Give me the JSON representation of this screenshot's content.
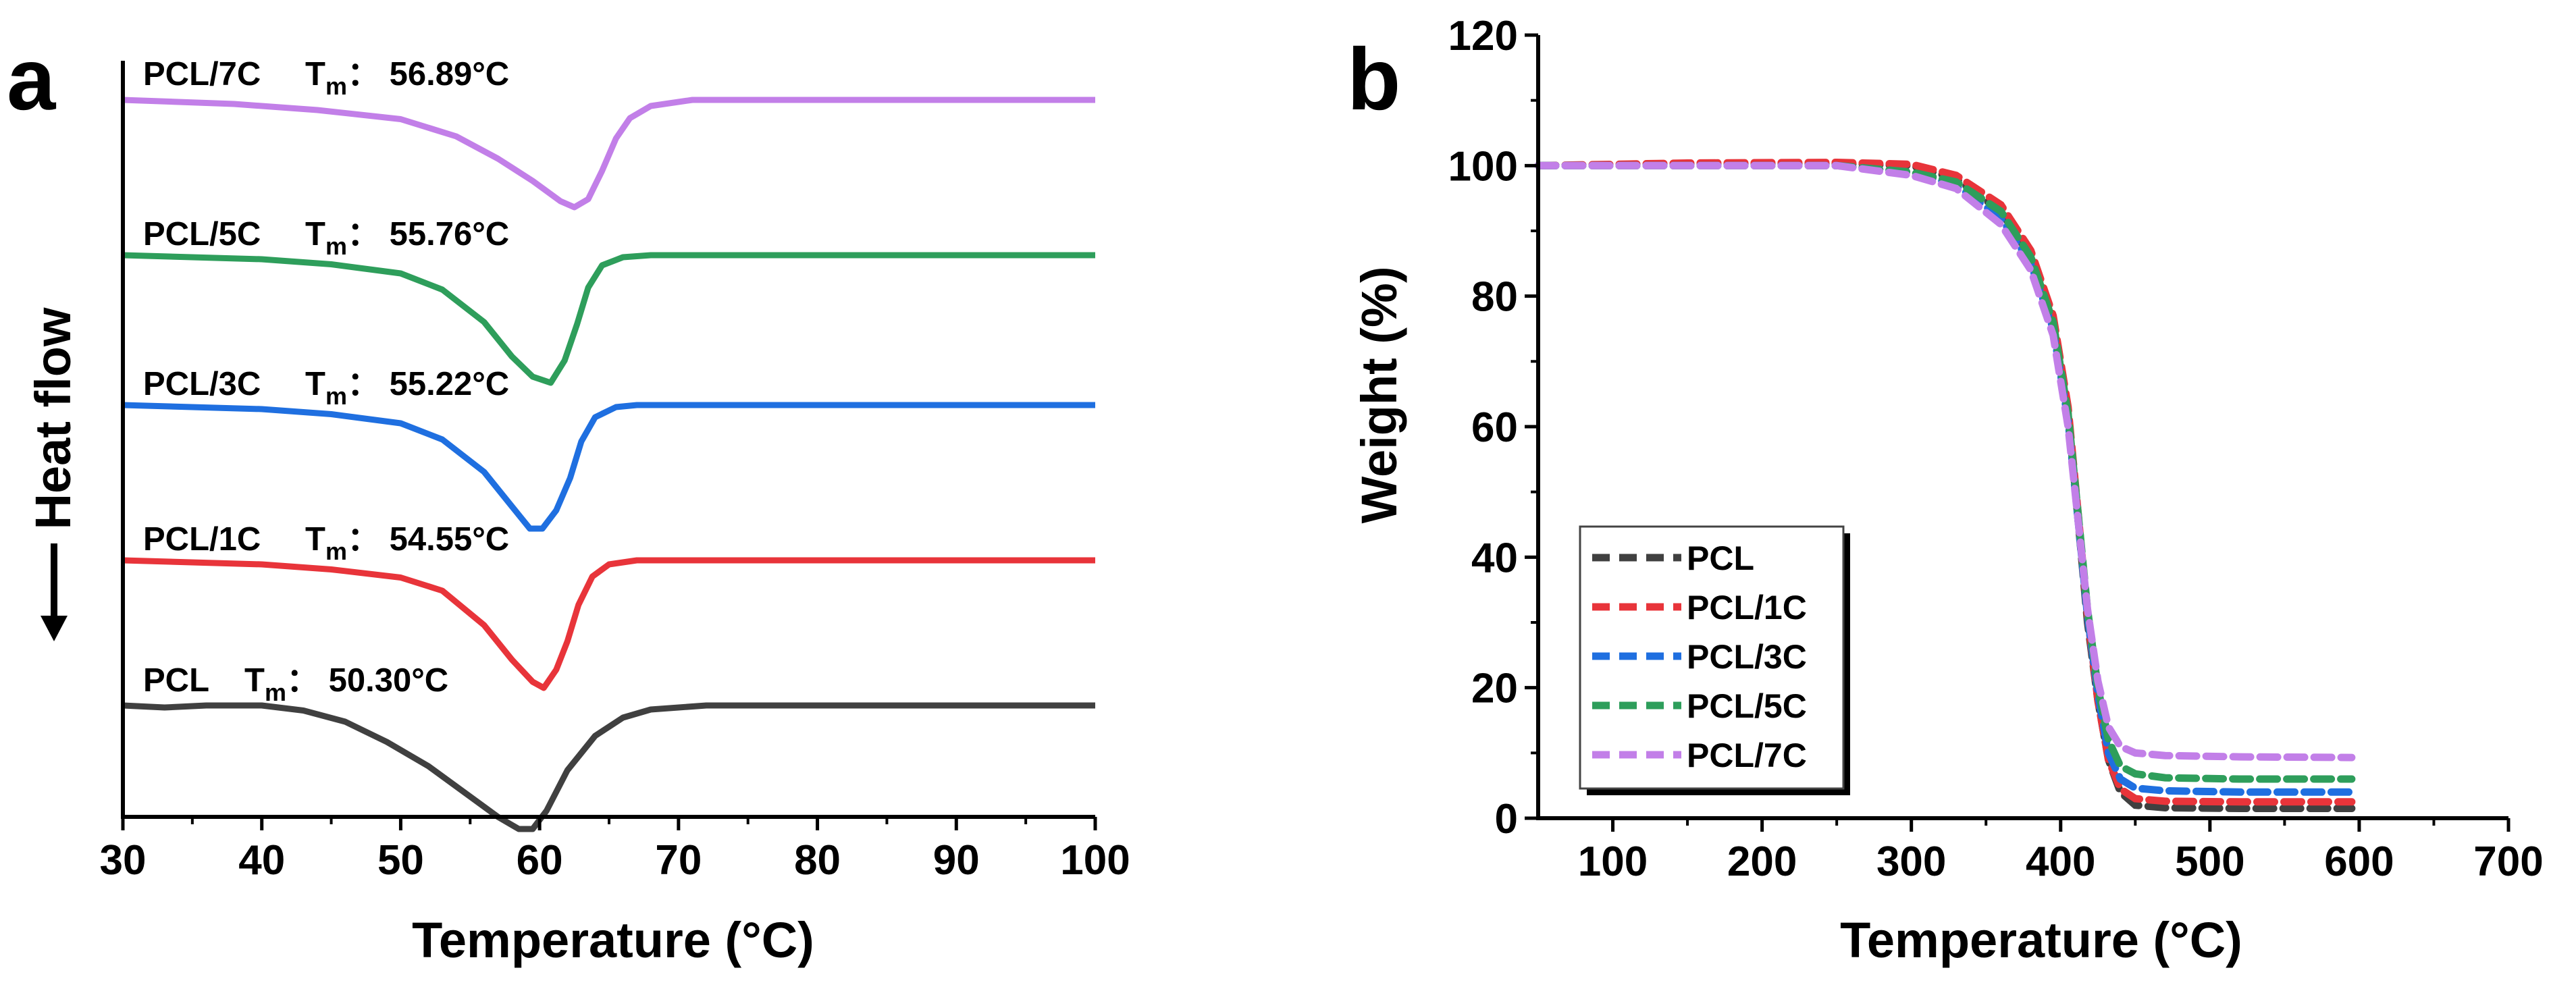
{
  "panels": {
    "a": {
      "letter": "a"
    },
    "b": {
      "letter": "b"
    }
  },
  "chart_data": [
    {
      "type": "line",
      "panel": "a",
      "xlabel": "Temperature (°C)",
      "ylabel": "Heat flow",
      "xlim": [
        30,
        100
      ],
      "xticks": [
        30,
        40,
        50,
        60,
        70,
        80,
        90,
        100
      ],
      "y_ticks_shown": false,
      "arrow": "down",
      "series": [
        {
          "name": "PCL",
          "label": "PCL",
          "tm_symbol": "T",
          "tm_sub": "m",
          "tm_value": "50.30°C",
          "color": "#404040",
          "points": [
            [
              30,
              0
            ],
            [
              33,
              -0.1
            ],
            [
              36,
              0
            ],
            [
              40,
              0
            ],
            [
              43,
              -0.25
            ],
            [
              46,
              -0.8
            ],
            [
              49,
              -1.8
            ],
            [
              52,
              -3.0
            ],
            [
              55,
              -4.5
            ],
            [
              57,
              -5.5
            ],
            [
              58.5,
              -6.1
            ],
            [
              59.5,
              -6.1
            ],
            [
              60.5,
              -5.2
            ],
            [
              62,
              -3.2
            ],
            [
              64,
              -1.5
            ],
            [
              66,
              -0.6
            ],
            [
              68,
              -0.2
            ],
            [
              72,
              0
            ],
            [
              80,
              0
            ],
            [
              90,
              0
            ],
            [
              100,
              0
            ]
          ]
        },
        {
          "name": "PCL/1C",
          "label": "PCL/1C",
          "tm_symbol": "T",
          "tm_sub": "m",
          "tm_value": "54.55°C",
          "color": "#E8343A",
          "points": [
            [
              30,
              0
            ],
            [
              40,
              -0.2
            ],
            [
              45,
              -0.45
            ],
            [
              50,
              -0.85
            ],
            [
              53,
              -1.5
            ],
            [
              56,
              -3.2
            ],
            [
              58,
              -4.9
            ],
            [
              59.5,
              -6.0
            ],
            [
              60.3,
              -6.3
            ],
            [
              61.2,
              -5.4
            ],
            [
              62,
              -4.0
            ],
            [
              62.8,
              -2.2
            ],
            [
              63.8,
              -0.8
            ],
            [
              65,
              -0.2
            ],
            [
              67,
              0
            ],
            [
              80,
              0
            ],
            [
              100,
              0
            ]
          ]
        },
        {
          "name": "PCL/3C",
          "label": "PCL/3C",
          "tm_symbol": "T",
          "tm_sub": "m",
          "tm_value": "55.22°C",
          "color": "#1F6FE0",
          "points": [
            [
              30,
              0
            ],
            [
              40,
              -0.2
            ],
            [
              45,
              -0.45
            ],
            [
              50,
              -0.9
            ],
            [
              53,
              -1.7
            ],
            [
              56,
              -3.3
            ],
            [
              58,
              -5.0
            ],
            [
              59.3,
              -6.1
            ],
            [
              60.2,
              -6.1
            ],
            [
              61.2,
              -5.2
            ],
            [
              62.2,
              -3.6
            ],
            [
              63,
              -1.8
            ],
            [
              64,
              -0.6
            ],
            [
              65.5,
              -0.1
            ],
            [
              67,
              0
            ],
            [
              80,
              0
            ],
            [
              100,
              0
            ]
          ]
        },
        {
          "name": "PCL/5C",
          "label": "PCL/5C",
          "tm_symbol": "T",
          "tm_sub": "m",
          "tm_value": "55.76°C",
          "color": "#2E9E5B",
          "points": [
            [
              30,
              0
            ],
            [
              40,
              -0.2
            ],
            [
              45,
              -0.45
            ],
            [
              50,
              -0.9
            ],
            [
              53,
              -1.7
            ],
            [
              56,
              -3.3
            ],
            [
              58,
              -5.0
            ],
            [
              59.5,
              -6.0
            ],
            [
              60.8,
              -6.3
            ],
            [
              61.8,
              -5.2
            ],
            [
              62.7,
              -3.4
            ],
            [
              63.5,
              -1.6
            ],
            [
              64.5,
              -0.5
            ],
            [
              66,
              -0.1
            ],
            [
              68,
              0
            ],
            [
              80,
              0
            ],
            [
              100,
              0
            ]
          ]
        },
        {
          "name": "PCL/7C",
          "label": "PCL/7C",
          "tm_symbol": "T",
          "tm_sub": "m",
          "tm_value": "56.89°C",
          "color": "#C27FE8",
          "points": [
            [
              30,
              0
            ],
            [
              38,
              -0.2
            ],
            [
              44,
              -0.5
            ],
            [
              50,
              -0.95
            ],
            [
              54,
              -1.8
            ],
            [
              57,
              -2.9
            ],
            [
              59.5,
              -4.0
            ],
            [
              61.5,
              -5.0
            ],
            [
              62.5,
              -5.3
            ],
            [
              63.5,
              -4.9
            ],
            [
              64.5,
              -3.5
            ],
            [
              65.5,
              -1.9
            ],
            [
              66.5,
              -0.9
            ],
            [
              68,
              -0.3
            ],
            [
              71,
              0
            ],
            [
              80,
              0
            ],
            [
              100,
              0
            ]
          ]
        }
      ]
    },
    {
      "type": "line",
      "panel": "b",
      "xlabel": "Temperature (°C)",
      "ylabel": "Weight (%)",
      "xlim": [
        50,
        700
      ],
      "ylim": [
        0,
        120
      ],
      "xticks": [
        100,
        200,
        300,
        400,
        500,
        600,
        700
      ],
      "yticks": [
        0,
        20,
        40,
        60,
        80,
        100,
        120
      ],
      "line_style": "dashed",
      "legend_position": "bottom-left",
      "series": [
        {
          "name": "PCL",
          "color": "#404040",
          "points": [
            [
              50,
              100
            ],
            [
              150,
              100.2
            ],
            [
              250,
              100.3
            ],
            [
              300,
              100
            ],
            [
              330,
              98
            ],
            [
              360,
              93
            ],
            [
              380,
              86
            ],
            [
              395,
              76
            ],
            [
              405,
              62
            ],
            [
              412,
              45
            ],
            [
              418,
              30
            ],
            [
              425,
              18
            ],
            [
              432,
              9
            ],
            [
              440,
              4
            ],
            [
              450,
              2
            ],
            [
              470,
              1.6
            ],
            [
              520,
              1.5
            ],
            [
              595,
              1.5
            ]
          ]
        },
        {
          "name": "PCL/1C",
          "color": "#E8343A",
          "points": [
            [
              50,
              100
            ],
            [
              150,
              100.4
            ],
            [
              250,
              100.5
            ],
            [
              300,
              100.2
            ],
            [
              330,
              98.5
            ],
            [
              360,
              94
            ],
            [
              380,
              87
            ],
            [
              395,
              77
            ],
            [
              405,
              63
            ],
            [
              412,
              46
            ],
            [
              418,
              31
            ],
            [
              425,
              18
            ],
            [
              432,
              9
            ],
            [
              440,
              4.5
            ],
            [
              450,
              3
            ],
            [
              470,
              2.6
            ],
            [
              520,
              2.5
            ],
            [
              595,
              2.5
            ]
          ]
        },
        {
          "name": "PCL/3C",
          "color": "#1F6FE0",
          "points": [
            [
              50,
              100
            ],
            [
              150,
              100
            ],
            [
              250,
              100
            ],
            [
              300,
              99
            ],
            [
              330,
              97
            ],
            [
              360,
              92
            ],
            [
              380,
              85
            ],
            [
              395,
              75
            ],
            [
              405,
              61
            ],
            [
              412,
              45
            ],
            [
              418,
              31
            ],
            [
              425,
              19
            ],
            [
              432,
              10
            ],
            [
              440,
              6
            ],
            [
              450,
              4.6
            ],
            [
              470,
              4.2
            ],
            [
              520,
              4
            ],
            [
              595,
              4
            ]
          ]
        },
        {
          "name": "PCL/5C",
          "color": "#2E9E5B",
          "points": [
            [
              50,
              100
            ],
            [
              150,
              100
            ],
            [
              250,
              100
            ],
            [
              300,
              99
            ],
            [
              330,
              97.5
            ],
            [
              360,
              93
            ],
            [
              380,
              86
            ],
            [
              395,
              76
            ],
            [
              405,
              62
            ],
            [
              412,
              46
            ],
            [
              418,
              32
            ],
            [
              425,
              20
            ],
            [
              432,
              12
            ],
            [
              440,
              8
            ],
            [
              450,
              6.8
            ],
            [
              470,
              6.2
            ],
            [
              520,
              6
            ],
            [
              595,
              6
            ]
          ]
        },
        {
          "name": "PCL/7C",
          "color": "#C27FE8",
          "points": [
            [
              50,
              100
            ],
            [
              150,
              100
            ],
            [
              250,
              100
            ],
            [
              300,
              98.5
            ],
            [
              330,
              96.5
            ],
            [
              360,
              91
            ],
            [
              380,
              84
            ],
            [
              395,
              74
            ],
            [
              405,
              60
            ],
            [
              412,
              45
            ],
            [
              418,
              32
            ],
            [
              425,
              21
            ],
            [
              432,
              14
            ],
            [
              440,
              11
            ],
            [
              450,
              10
            ],
            [
              470,
              9.6
            ],
            [
              520,
              9.4
            ],
            [
              595,
              9.3
            ]
          ]
        }
      ]
    }
  ]
}
